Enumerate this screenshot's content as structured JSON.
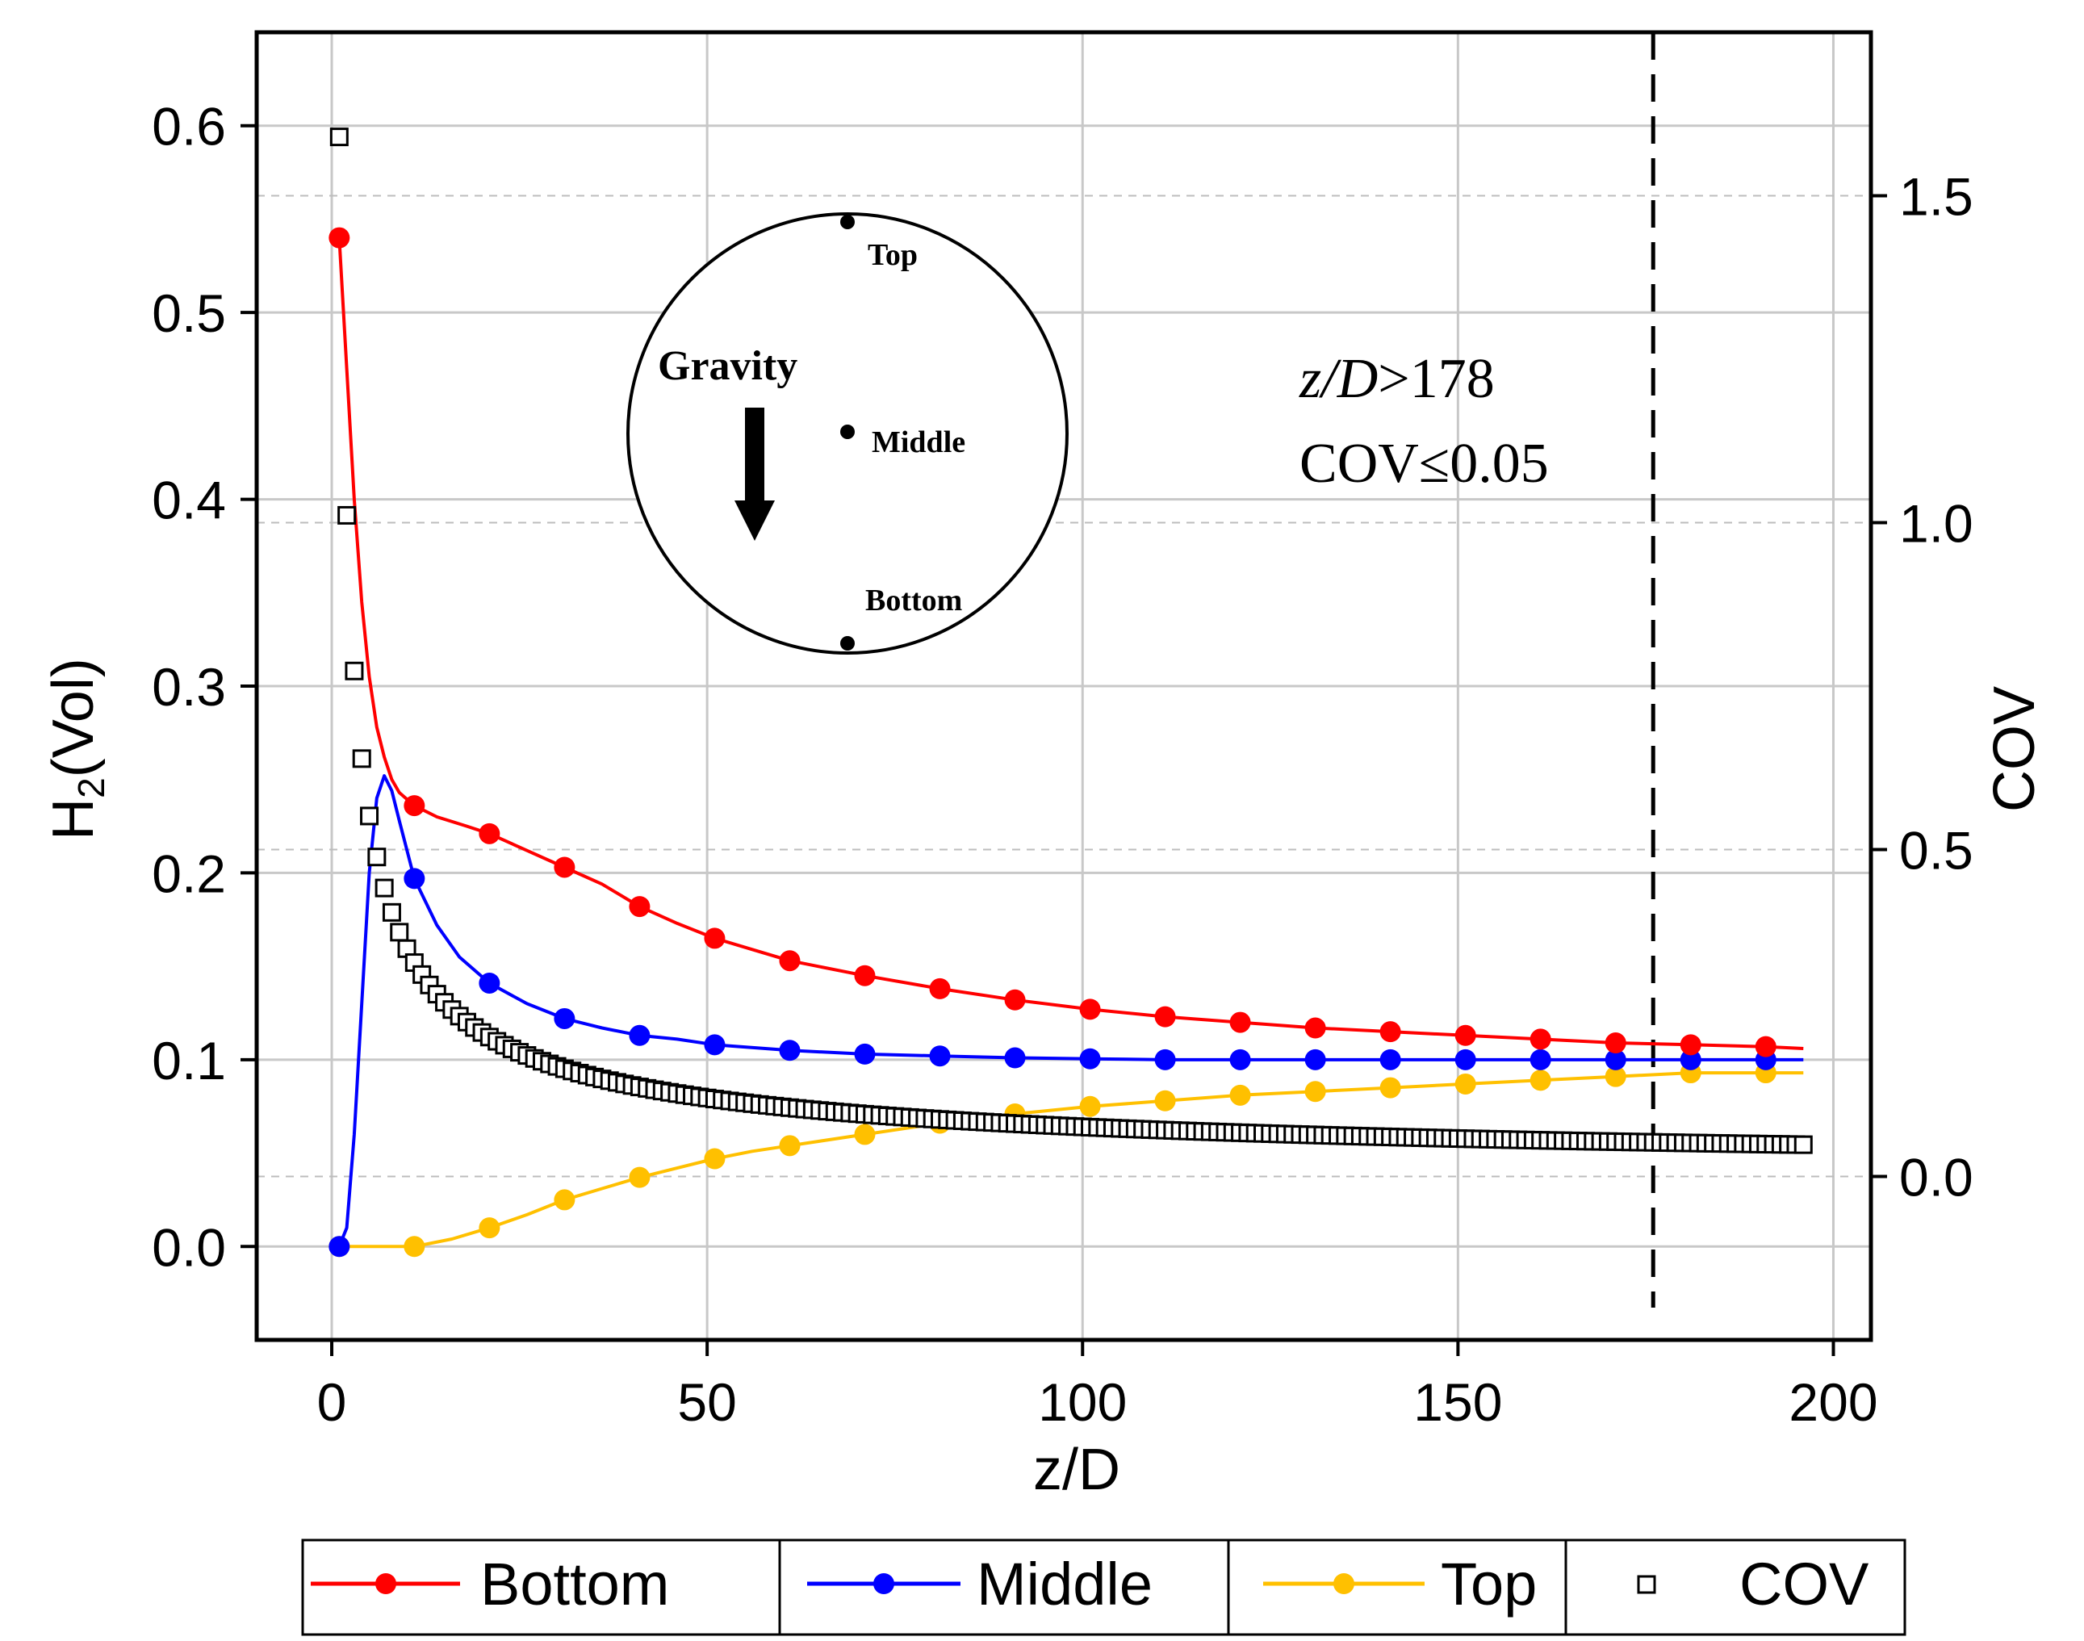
{
  "chart_data": {
    "type": "line",
    "title": "",
    "xlabel": "z/D",
    "ylabel_left": {
      "base": "H",
      "sub": "2",
      "rest": "(Vol)"
    },
    "ylabel_right": "COV",
    "xlim": [
      -10,
      205
    ],
    "ylim_left": [
      -0.05,
      0.65
    ],
    "ylim_right": [
      -0.25,
      1.75
    ],
    "x_ticks": [
      0,
      50,
      100,
      150,
      200
    ],
    "x_tick_labels": [
      "0",
      "50",
      "100",
      "150",
      "200"
    ],
    "y_left_ticks": [
      0.0,
      0.1,
      0.2,
      0.3,
      0.4,
      0.5,
      0.6
    ],
    "y_left_tick_labels": [
      "0.0",
      "0.1",
      "0.2",
      "0.3",
      "0.4",
      "0.5",
      "0.6"
    ],
    "y_right_ticks": [
      0.0,
      0.5,
      1.0,
      1.5
    ],
    "y_right_tick_labels": [
      "0.0",
      "0.5",
      "1.0",
      "1.5"
    ],
    "grid": true,
    "reference_line": {
      "x": 176,
      "style": "dashed"
    },
    "annotations": {
      "criterion_line1_italic": "z/D",
      "criterion_line1_rest": ">178",
      "criterion_line2": "COV≤0.05"
    },
    "inset": {
      "gravity_label": "Gravity",
      "points": [
        "Top",
        "Middle",
        "Bottom"
      ]
    },
    "series": [
      {
        "name": "Bottom",
        "axis": "left",
        "color": "#ff0000",
        "line_x": [
          1,
          2,
          3,
          4,
          5,
          6,
          7,
          8,
          9,
          11,
          14,
          18,
          21,
          26,
          31,
          36,
          41,
          46,
          51,
          56,
          61,
          71,
          81,
          91,
          101,
          111,
          121,
          131,
          141,
          151,
          161,
          171,
          181,
          191,
          196
        ],
        "line_y": [
          0.54,
          0.47,
          0.4,
          0.345,
          0.305,
          0.278,
          0.262,
          0.25,
          0.243,
          0.236,
          0.23,
          0.225,
          0.221,
          0.212,
          0.203,
          0.194,
          0.182,
          0.173,
          0.165,
          0.159,
          0.153,
          0.145,
          0.138,
          0.132,
          0.127,
          0.123,
          0.12,
          0.117,
          0.115,
          0.113,
          0.111,
          0.109,
          0.108,
          0.107,
          0.106
        ],
        "marker_x": [
          1,
          11,
          21,
          31,
          41,
          51,
          61,
          71,
          81,
          91,
          101,
          111,
          121,
          131,
          141,
          151,
          161,
          171,
          181,
          191
        ],
        "marker_y": [
          0.54,
          0.236,
          0.221,
          0.203,
          0.182,
          0.165,
          0.153,
          0.145,
          0.138,
          0.132,
          0.127,
          0.123,
          0.12,
          0.117,
          0.115,
          0.113,
          0.111,
          0.109,
          0.108,
          0.107
        ]
      },
      {
        "name": "Middle",
        "axis": "left",
        "color": "#0000ff",
        "line_x": [
          1,
          2,
          3,
          4,
          5,
          6,
          7,
          8,
          9,
          11,
          14,
          17,
          21,
          26,
          31,
          36,
          41,
          46,
          51,
          61,
          71,
          81,
          91,
          101,
          111,
          121,
          131,
          141,
          151,
          161,
          171,
          181,
          191,
          196
        ],
        "line_y": [
          0.0,
          0.01,
          0.06,
          0.13,
          0.2,
          0.24,
          0.252,
          0.244,
          0.228,
          0.197,
          0.172,
          0.155,
          0.141,
          0.13,
          0.122,
          0.117,
          0.113,
          0.111,
          0.108,
          0.105,
          0.103,
          0.102,
          0.101,
          0.1005,
          0.1,
          0.1,
          0.1,
          0.1,
          0.1,
          0.1,
          0.1,
          0.1,
          0.1,
          0.1
        ],
        "marker_x": [
          1,
          11,
          21,
          31,
          41,
          51,
          61,
          71,
          81,
          91,
          101,
          111,
          121,
          131,
          141,
          151,
          161,
          171,
          181,
          191
        ],
        "marker_y": [
          0.0,
          0.197,
          0.141,
          0.122,
          0.113,
          0.108,
          0.105,
          0.103,
          0.102,
          0.101,
          0.1005,
          0.1,
          0.1,
          0.1,
          0.1,
          0.1,
          0.1,
          0.1,
          0.1,
          0.1
        ]
      },
      {
        "name": "Top",
        "axis": "left",
        "color": "#ffc000",
        "line_x": [
          1,
          6,
          11,
          16,
          21,
          26,
          31,
          36,
          41,
          46,
          51,
          56,
          61,
          71,
          81,
          91,
          101,
          111,
          121,
          131,
          141,
          151,
          161,
          171,
          181,
          191,
          196
        ],
        "line_y": [
          0.0,
          0.0,
          0.0,
          0.004,
          0.01,
          0.017,
          0.025,
          0.031,
          0.037,
          0.042,
          0.047,
          0.051,
          0.054,
          0.06,
          0.066,
          0.071,
          0.075,
          0.078,
          0.081,
          0.083,
          0.085,
          0.087,
          0.089,
          0.091,
          0.093,
          0.093,
          0.093
        ],
        "marker_x": [
          1,
          11,
          21,
          31,
          41,
          51,
          61,
          71,
          81,
          91,
          101,
          111,
          121,
          131,
          141,
          151,
          161,
          171,
          181,
          191
        ],
        "marker_y": [
          0.0,
          0.0,
          0.01,
          0.025,
          0.037,
          0.047,
          0.054,
          0.06,
          0.066,
          0.071,
          0.075,
          0.078,
          0.081,
          0.083,
          0.085,
          0.087,
          0.089,
          0.091,
          0.093,
          0.093
        ]
      },
      {
        "name": "COV",
        "axis": "right",
        "color": "#000000",
        "marker": "open-square",
        "cov_model": {
          "x_start": 1,
          "x_end": 196,
          "step": 1,
          "coefficient": 1.6,
          "exponent": 0.662,
          "y_at_x1": 1.59
        }
      }
    ],
    "legend": {
      "placement": "bottom",
      "entries": [
        "Bottom",
        "Middle",
        "Top",
        "COV"
      ]
    }
  }
}
